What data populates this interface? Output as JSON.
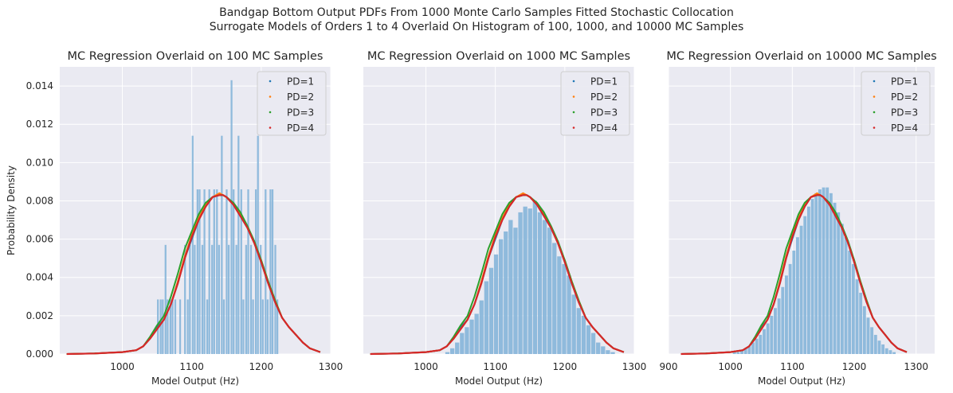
{
  "figure": {
    "title_line1": "Bandgap Bottom Output PDFs From 1000 Monte Carlo Samples Fitted Stochastic Collocation",
    "title_line2": "Surrogate Models of Orders 1 to 4 Overlaid On Histogram of 100, 1000, and 10000 MC Samples"
  },
  "colors": {
    "background": "#eaeaf2",
    "grid": "#ffffff",
    "histogram": "#8ab7da",
    "PD=1": "#1f77b4",
    "PD=2": "#ff7f0e",
    "PD=3": "#2ca02c",
    "PD=4": "#d62728"
  },
  "chart_data": [
    {
      "type": "histogram+line",
      "title": "MC Regression Overlaid on 100 MC Samples",
      "xlabel": "Model Output (Hz)",
      "ylabel": "Probability Density",
      "xlim": [
        910,
        1300
      ],
      "ylim": [
        0,
        0.015
      ],
      "xticks": [
        "1000",
        "1100",
        "1200",
        "1300"
      ],
      "yticks": [
        "0.000",
        "0.002",
        "0.004",
        "0.006",
        "0.008",
        "0.010",
        "0.012",
        "0.014"
      ],
      "grid": true,
      "legend_position": "top-right",
      "legend": [
        "PD=1",
        "PD=2",
        "PD=3",
        "PD=4"
      ],
      "histogram": {
        "bin_width": 3.5,
        "bins": [
          [
            1050,
            0.00285
          ],
          [
            1054,
            0.00285
          ],
          [
            1057,
            0.00285
          ],
          [
            1061,
            0.0057
          ],
          [
            1064,
            0.00285
          ],
          [
            1068,
            0.00285
          ],
          [
            1071,
            0.00285
          ],
          [
            1075,
            0.00285
          ],
          [
            1082,
            0.00285
          ],
          [
            1089,
            0.0057
          ],
          [
            1093,
            0.00285
          ],
          [
            1096,
            0.0057
          ],
          [
            1100,
            0.0114
          ],
          [
            1103,
            0.0057
          ],
          [
            1107,
            0.0086
          ],
          [
            1110,
            0.0086
          ],
          [
            1114,
            0.0057
          ],
          [
            1117,
            0.0086
          ],
          [
            1121,
            0.00285
          ],
          [
            1124,
            0.0086
          ],
          [
            1128,
            0.0057
          ],
          [
            1131,
            0.0086
          ],
          [
            1135,
            0.0086
          ],
          [
            1138,
            0.0057
          ],
          [
            1142,
            0.0114
          ],
          [
            1145,
            0.00285
          ],
          [
            1149,
            0.0086
          ],
          [
            1152,
            0.0057
          ],
          [
            1156,
            0.0143
          ],
          [
            1159,
            0.0086
          ],
          [
            1163,
            0.0057
          ],
          [
            1166,
            0.0114
          ],
          [
            1170,
            0.0086
          ],
          [
            1173,
            0.00285
          ],
          [
            1177,
            0.0057
          ],
          [
            1180,
            0.0086
          ],
          [
            1184,
            0.0057
          ],
          [
            1187,
            0.00285
          ],
          [
            1191,
            0.0086
          ],
          [
            1194,
            0.0114
          ],
          [
            1198,
            0.0057
          ],
          [
            1201,
            0.00285
          ],
          [
            1205,
            0.0086
          ],
          [
            1208,
            0.00285
          ],
          [
            1212,
            0.0086
          ],
          [
            1215,
            0.0086
          ],
          [
            1219,
            0.0057
          ],
          [
            1222,
            0.00285
          ]
        ]
      }
    },
    {
      "type": "histogram+line",
      "title": "MC Regression Overlaid on 1000 MC Samples",
      "xlabel": "Model Output (Hz)",
      "xlim": [
        910,
        1300
      ],
      "ylim": [
        0,
        0.015
      ],
      "xticks": [
        "1000",
        "1100",
        "1200",
        "1300"
      ],
      "grid": true,
      "legend_position": "top-right",
      "legend": [
        "PD=1",
        "PD=2",
        "PD=3",
        "PD=4"
      ],
      "histogram": {
        "bin_width": 7,
        "bins": [
          [
            1028,
            0.0001
          ],
          [
            1035,
            0.0003
          ],
          [
            1042,
            0.0006
          ],
          [
            1049,
            0.0011
          ],
          [
            1056,
            0.0014
          ],
          [
            1063,
            0.0018
          ],
          [
            1070,
            0.0021
          ],
          [
            1077,
            0.0028
          ],
          [
            1084,
            0.0038
          ],
          [
            1091,
            0.0045
          ],
          [
            1098,
            0.0052
          ],
          [
            1105,
            0.006
          ],
          [
            1112,
            0.0064
          ],
          [
            1119,
            0.007
          ],
          [
            1126,
            0.0066
          ],
          [
            1133,
            0.0074
          ],
          [
            1140,
            0.0077
          ],
          [
            1147,
            0.0076
          ],
          [
            1154,
            0.008
          ],
          [
            1161,
            0.0074
          ],
          [
            1168,
            0.007
          ],
          [
            1175,
            0.0066
          ],
          [
            1182,
            0.0058
          ],
          [
            1189,
            0.0051
          ],
          [
            1196,
            0.0047
          ],
          [
            1203,
            0.0041
          ],
          [
            1210,
            0.0031
          ],
          [
            1217,
            0.0024
          ],
          [
            1224,
            0.002
          ],
          [
            1231,
            0.0015
          ],
          [
            1238,
            0.0011
          ],
          [
            1245,
            0.0006
          ],
          [
            1252,
            0.0004
          ],
          [
            1259,
            0.0002
          ],
          [
            1266,
            0.0001
          ]
        ]
      }
    },
    {
      "type": "histogram+line",
      "title": "MC Regression Overlaid on 10000 MC Samples",
      "xlabel": "Model Output (Hz)",
      "xlim": [
        900,
        1330
      ],
      "ylim": [
        0,
        0.015
      ],
      "xticks": [
        "900",
        "1000",
        "1100",
        "1200",
        "1300"
      ],
      "grid": true,
      "legend_position": "top-right",
      "legend": [
        "PD=1",
        "PD=2",
        "PD=3",
        "PD=4"
      ],
      "histogram": {
        "bin_width": 6,
        "bins": [
          [
            1004,
            0.0001
          ],
          [
            1010,
            0.0001
          ],
          [
            1016,
            0.0002
          ],
          [
            1022,
            0.0003
          ],
          [
            1028,
            0.0004
          ],
          [
            1034,
            0.0006
          ],
          [
            1040,
            0.0008
          ],
          [
            1046,
            0.001
          ],
          [
            1052,
            0.0013
          ],
          [
            1058,
            0.0016
          ],
          [
            1064,
            0.002
          ],
          [
            1070,
            0.0024
          ],
          [
            1076,
            0.0029
          ],
          [
            1082,
            0.0035
          ],
          [
            1088,
            0.0041
          ],
          [
            1094,
            0.0047
          ],
          [
            1100,
            0.0054
          ],
          [
            1106,
            0.0061
          ],
          [
            1112,
            0.0067
          ],
          [
            1118,
            0.0072
          ],
          [
            1124,
            0.0077
          ],
          [
            1130,
            0.0081
          ],
          [
            1136,
            0.0084
          ],
          [
            1142,
            0.0086
          ],
          [
            1148,
            0.0087
          ],
          [
            1154,
            0.0087
          ],
          [
            1160,
            0.0084
          ],
          [
            1166,
            0.0079
          ],
          [
            1172,
            0.0074
          ],
          [
            1178,
            0.0068
          ],
          [
            1184,
            0.0061
          ],
          [
            1190,
            0.0054
          ],
          [
            1196,
            0.0047
          ],
          [
            1202,
            0.0039
          ],
          [
            1208,
            0.0032
          ],
          [
            1214,
            0.0025
          ],
          [
            1220,
            0.0019
          ],
          [
            1226,
            0.0014
          ],
          [
            1232,
            0.001
          ],
          [
            1238,
            0.0007
          ],
          [
            1244,
            0.0005
          ],
          [
            1250,
            0.0003
          ],
          [
            1256,
            0.0002
          ],
          [
            1262,
            0.0001
          ]
        ]
      }
    }
  ],
  "pdf_curve": {
    "x": [
      920,
      960,
      1000,
      1020,
      1030,
      1040,
      1050,
      1060,
      1070,
      1080,
      1090,
      1100,
      1110,
      1120,
      1130,
      1140,
      1145,
      1150,
      1160,
      1170,
      1180,
      1190,
      1200,
      1210,
      1220,
      1230,
      1240,
      1250,
      1260,
      1270,
      1285
    ],
    "series": [
      {
        "name": "PD=1",
        "y": [
          0.0,
          3e-05,
          0.0001,
          0.0002,
          0.0004,
          0.0008,
          0.0014,
          0.0018,
          0.0026,
          0.0037,
          0.005,
          0.006,
          0.007,
          0.0077,
          0.0082,
          0.0083,
          0.0083,
          0.0082,
          0.0078,
          0.0072,
          0.0066,
          0.0058,
          0.0048,
          0.0037,
          0.0027,
          0.0019,
          0.0014,
          0.001,
          0.0006,
          0.0003,
          0.0001
        ]
      },
      {
        "name": "PD=2",
        "y": [
          0.0,
          3e-05,
          0.0001,
          0.0002,
          0.0004,
          0.0008,
          0.0013,
          0.0018,
          0.0026,
          0.0038,
          0.0051,
          0.0062,
          0.0071,
          0.0078,
          0.0082,
          0.0084,
          0.0083,
          0.0082,
          0.0078,
          0.0073,
          0.0066,
          0.0058,
          0.0049,
          0.0038,
          0.0028,
          0.0019,
          0.0014,
          0.001,
          0.0006,
          0.0003,
          0.0001
        ]
      },
      {
        "name": "PD=3",
        "y": [
          0.0,
          3e-05,
          0.0001,
          0.0002,
          0.0004,
          0.0009,
          0.0015,
          0.002,
          0.003,
          0.0042,
          0.0055,
          0.0064,
          0.0073,
          0.0079,
          0.0082,
          0.0083,
          0.0083,
          0.0082,
          0.0079,
          0.0074,
          0.0067,
          0.0059,
          0.0049,
          0.0038,
          0.0028,
          0.0019,
          0.0014,
          0.001,
          0.0006,
          0.0003,
          0.0001
        ]
      },
      {
        "name": "PD=4",
        "y": [
          0.0,
          3e-05,
          0.0001,
          0.0002,
          0.0004,
          0.0008,
          0.0013,
          0.0018,
          0.0026,
          0.0037,
          0.005,
          0.0061,
          0.007,
          0.0077,
          0.0082,
          0.0083,
          0.0083,
          0.0082,
          0.0078,
          0.0072,
          0.0066,
          0.0058,
          0.0048,
          0.0037,
          0.0027,
          0.0019,
          0.0014,
          0.001,
          0.0006,
          0.0003,
          0.0001
        ]
      }
    ]
  }
}
